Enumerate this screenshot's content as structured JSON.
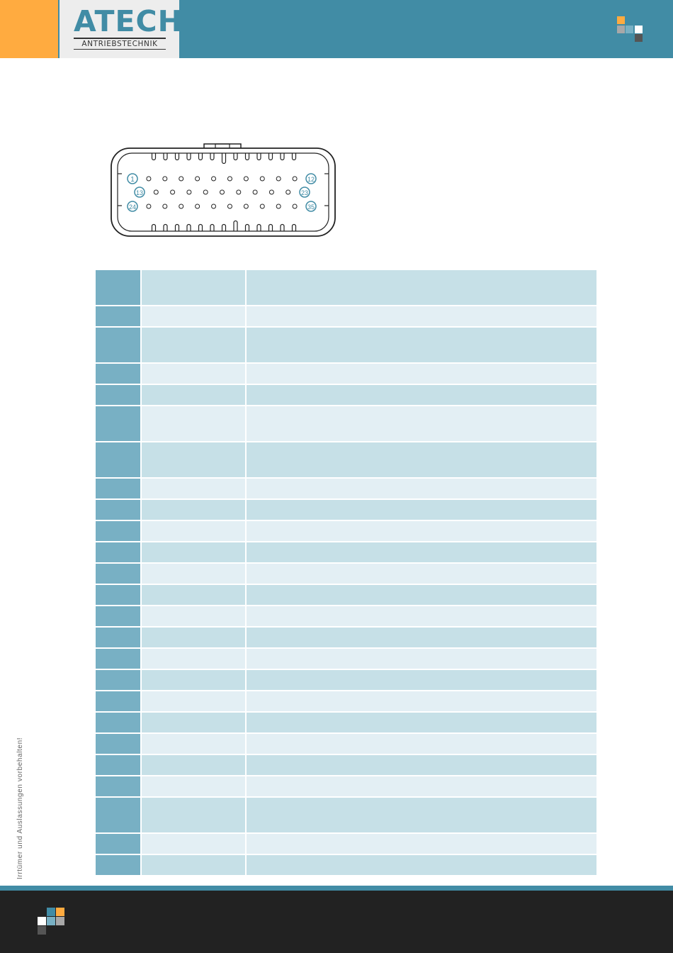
{
  "header": {
    "logo_word": "ATECH",
    "logo_sub": "ANTRIEBSTECHNIK"
  },
  "connector": {
    "pin_labels": [
      "1",
      "12",
      "13",
      "23",
      "24",
      "35"
    ]
  },
  "side_note": "Irrtümer und Auslassungen vorbehalten!",
  "table": {
    "rows": [
      "tall",
      "short",
      "tall",
      "short",
      "short",
      "tall",
      "tall",
      "short",
      "short",
      "short",
      "short",
      "short",
      "short",
      "short",
      "short",
      "short",
      "short",
      "short",
      "short",
      "short",
      "short",
      "short",
      "tall",
      "short",
      "short"
    ]
  },
  "colors": {
    "brand_teal": "#418ca5",
    "brand_orange": "#ffab40",
    "table_pin_col": "#78b0c4",
    "table_row_dark": "#c6e0e7",
    "table_row_light": "#e3eff4",
    "footer": "#222222"
  }
}
